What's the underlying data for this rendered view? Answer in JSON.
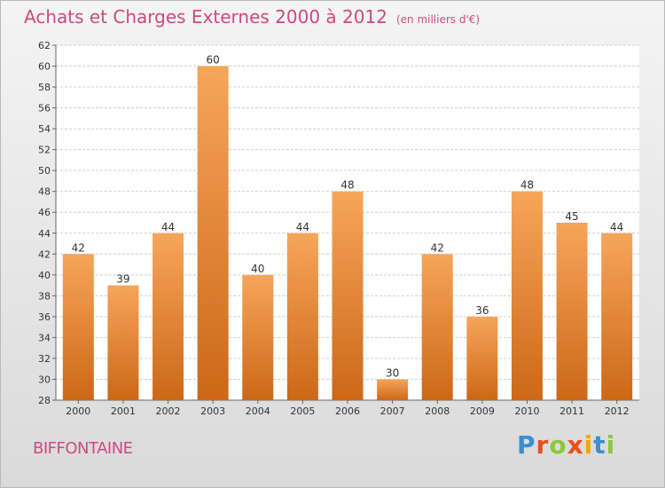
{
  "header": {
    "title": "Achats et Charges Externes 2000 à 2012",
    "subtitle": "(en milliers d'€)"
  },
  "footer": {
    "commune": "BIFFONTAINE",
    "brand_letters": [
      "P",
      "r",
      "o",
      "x",
      "i",
      "t",
      "i"
    ],
    "brand_colors": [
      "#3a8fd0",
      "#e94e1b",
      "#8dc63f",
      "#e94e1b",
      "#f7a600",
      "#3a8fd0",
      "#8dc63f"
    ]
  },
  "colors": {
    "title": "#d0497e",
    "bar_top": "#f7a55a",
    "bar_bottom": "#cc6818",
    "grid": "#cfcfcf"
  },
  "chart_data": {
    "type": "bar",
    "categories": [
      "2000",
      "2001",
      "2002",
      "2003",
      "2004",
      "2005",
      "2006",
      "2007",
      "2008",
      "2009",
      "2010",
      "2011",
      "2012"
    ],
    "values": [
      42,
      39,
      44,
      60,
      40,
      44,
      48,
      30,
      42,
      36,
      48,
      45,
      44
    ],
    "ylim": [
      28,
      62
    ],
    "yticks": [
      28,
      30,
      32,
      34,
      36,
      38,
      40,
      42,
      44,
      46,
      48,
      50,
      52,
      54,
      56,
      58,
      60,
      62
    ],
    "grid": true,
    "data_labels": true
  }
}
